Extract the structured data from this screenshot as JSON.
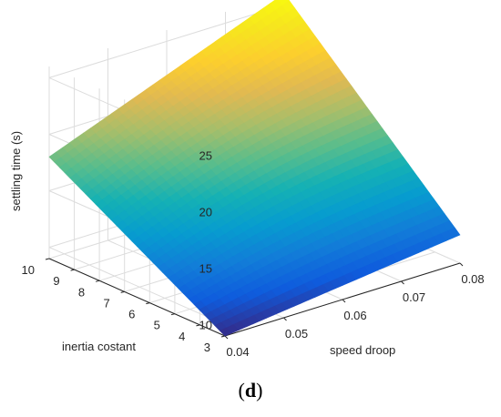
{
  "chart_data": {
    "type": "surface",
    "xlabel": "speed droop",
    "ylabel": "inertia costant",
    "zlabel": "settling time (s)",
    "x_ticks": [
      "0.04",
      "0.05",
      "0.06",
      "0.07",
      "0.08"
    ],
    "y_ticks": [
      "3",
      "4",
      "5",
      "6",
      "7",
      "8",
      "9",
      "10"
    ],
    "z_ticks": [
      "10",
      "15",
      "20",
      "25"
    ],
    "xlim": [
      0.04,
      0.08
    ],
    "ylim": [
      3,
      10
    ],
    "zlim": [
      9,
      26
    ],
    "corner_values": [
      {
        "x": 0.04,
        "y": 3,
        "z": 9.0
      },
      {
        "x": 0.08,
        "y": 3,
        "z": 11.5
      },
      {
        "x": 0.04,
        "y": 10,
        "z": 18.0
      },
      {
        "x": 0.08,
        "y": 10,
        "z": 26.0
      }
    ],
    "colormap": "parula",
    "grid": true,
    "legend": "none"
  },
  "caption": {
    "open": "(",
    "letter": "d",
    "close": ")"
  }
}
